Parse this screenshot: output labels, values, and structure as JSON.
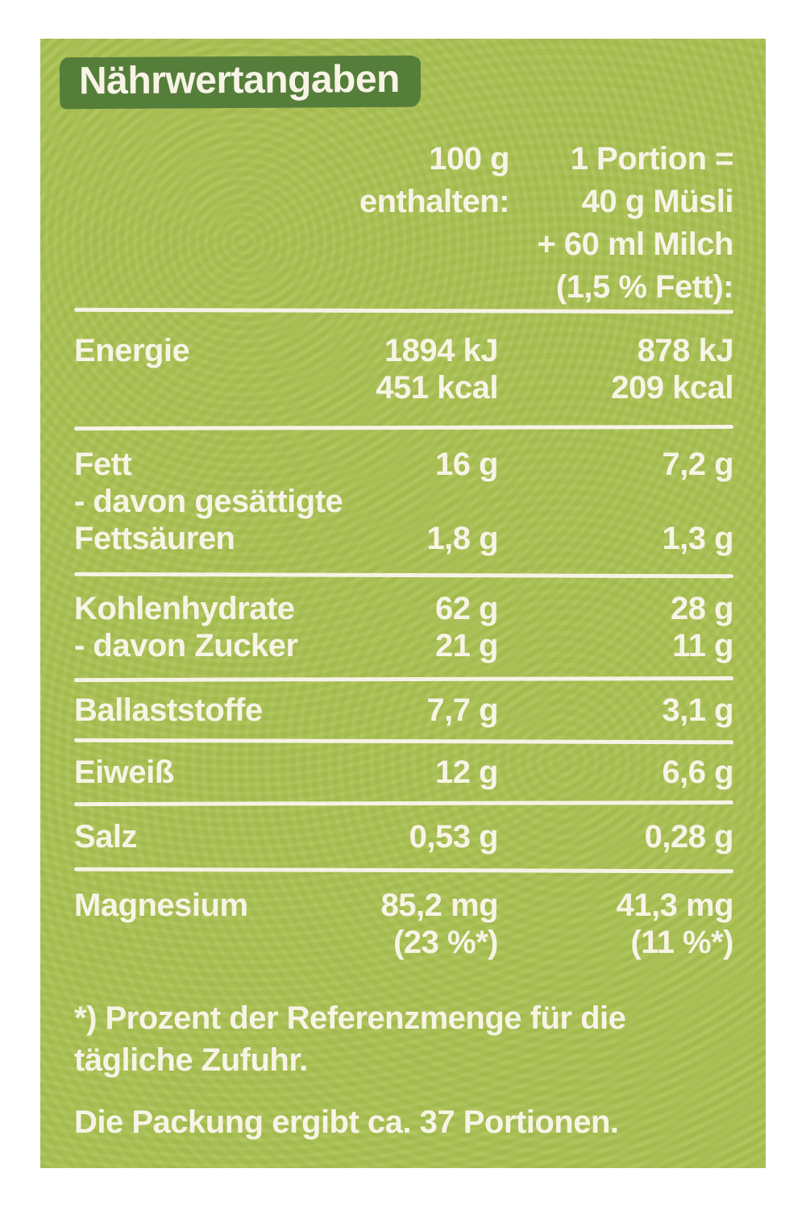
{
  "label": {
    "title": "Nährwertangaben",
    "header": {
      "per100_lines": [
        "100 g",
        "enthalten:"
      ],
      "portion_lines": [
        "1 Portion =",
        "40 g Müsli",
        "+ 60 ml Milch",
        "(1,5 % Fett):"
      ]
    },
    "sections": [
      {
        "lines": [
          {
            "label": "Energie",
            "per100": "1894 kJ",
            "portion": "878 kJ"
          },
          {
            "label": "",
            "per100": "451 kcal",
            "portion": "209 kcal"
          }
        ]
      },
      {
        "lines": [
          {
            "label": "Fett",
            "per100": "16 g",
            "portion": "7,2 g"
          },
          {
            "label": "- davon gesättigte",
            "per100": "",
            "portion": ""
          },
          {
            "label": "Fettsäuren",
            "per100": "1,8 g",
            "portion": "1,3 g"
          }
        ]
      },
      {
        "lines": [
          {
            "label": "Kohlenhydrate",
            "per100": "62 g",
            "portion": "28 g"
          },
          {
            "label": "- davon Zucker",
            "per100": "21 g",
            "portion": "11 g"
          }
        ]
      },
      {
        "lines": [
          {
            "label": "Ballaststoffe",
            "per100": "7,7 g",
            "portion": "3,1 g"
          }
        ]
      },
      {
        "lines": [
          {
            "label": "Eiweiß",
            "per100": "12 g",
            "portion": "6,6 g"
          }
        ]
      },
      {
        "lines": [
          {
            "label": "Salz",
            "per100": "0,53 g",
            "portion": "0,28 g"
          }
        ]
      },
      {
        "lines": [
          {
            "label": "Magnesium",
            "per100": "85,2 mg",
            "portion": "41,3 mg"
          },
          {
            "label": "",
            "per100": "(23 %*)",
            "portion": "(11 %*)"
          }
        ]
      }
    ],
    "footnote_lines": [
      "*) Prozent der Referenzmenge für die",
      "tägliche Zufuhr."
    ],
    "servings_note": "Die Packung ergibt ca. 37 Portionen.",
    "colors": {
      "background": "#a9c052",
      "title_band": "#567e3b",
      "text": "#f7f4e6"
    }
  }
}
